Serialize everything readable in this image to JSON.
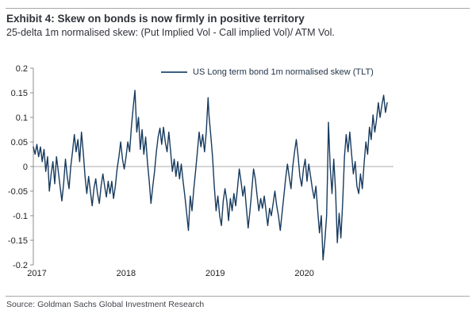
{
  "header": {
    "title": "Exhibit 4: Skew on bonds is now firmly in positive territory",
    "subtitle": "25-delta 1m normalised skew: (Put Implied Vol - Call implied Vol)/ ATM Vol."
  },
  "source": "Source: Goldman Sachs Global Investment Research",
  "chart_data": {
    "type": "line",
    "title": "Exhibit 4: Skew on bonds is now firmly in positive territory",
    "subtitle": "25-delta 1m normalised skew: (Put Implied Vol - Call implied Vol)/ ATM Vol.",
    "xlabel": "",
    "ylabel": "",
    "xlim": [
      2016.96,
      2021.0
    ],
    "ylim": [
      -0.2,
      0.2
    ],
    "grid": "zero-line-only",
    "legend_position": "top-center",
    "axis_color": "#8c8c8c",
    "zero_line_color": "#ababab",
    "tick_label_color": "#222222",
    "y_ticks": [
      {
        "v": 0.2,
        "label": "0.2"
      },
      {
        "v": 0.15,
        "label": "0.15"
      },
      {
        "v": 0.1,
        "label": "0.1"
      },
      {
        "v": 0.05,
        "label": "0.05"
      },
      {
        "v": 0,
        "label": "0"
      },
      {
        "v": -0.05,
        "label": "-0.05"
      },
      {
        "v": -0.1,
        "label": "-0.1"
      },
      {
        "v": -0.15,
        "label": "-0.15"
      },
      {
        "v": -0.2,
        "label": "-0.2"
      }
    ],
    "x_ticks": [
      {
        "v": 2017,
        "label": "2017"
      },
      {
        "v": 2018,
        "label": "2018"
      },
      {
        "v": 2019,
        "label": "2019"
      },
      {
        "v": 2020,
        "label": "2020"
      }
    ],
    "series": [
      {
        "name": "US Long term bond 1m normalised skew (TLT)",
        "color": "#173a5e",
        "points": [
          [
            2016.96,
            0.04
          ],
          [
            2016.98,
            0.025
          ],
          [
            2017.0,
            0.045
          ],
          [
            2017.02,
            0.02
          ],
          [
            2017.04,
            0.04
          ],
          [
            2017.06,
            0.01
          ],
          [
            2017.08,
            0.035
          ],
          [
            2017.1,
            -0.01
          ],
          [
            2017.12,
            0.02
          ],
          [
            2017.14,
            -0.05
          ],
          [
            2017.16,
            -0.015
          ],
          [
            2017.18,
            0.01
          ],
          [
            2017.2,
            -0.035
          ],
          [
            2017.22,
            0.02
          ],
          [
            2017.24,
            -0.01
          ],
          [
            2017.26,
            -0.04
          ],
          [
            2017.28,
            -0.07
          ],
          [
            2017.3,
            -0.035
          ],
          [
            2017.32,
            0.015
          ],
          [
            2017.34,
            -0.02
          ],
          [
            2017.36,
            -0.045
          ],
          [
            2017.38,
            0.0
          ],
          [
            2017.4,
            0.03
          ],
          [
            2017.42,
            0.065
          ],
          [
            2017.44,
            0.03
          ],
          [
            2017.46,
            0.055
          ],
          [
            2017.48,
            0.01
          ],
          [
            2017.5,
            0.07
          ],
          [
            2017.52,
            0.03
          ],
          [
            2017.54,
            -0.02
          ],
          [
            2017.56,
            -0.055
          ],
          [
            2017.58,
            -0.02
          ],
          [
            2017.6,
            -0.05
          ],
          [
            2017.62,
            -0.08
          ],
          [
            2017.64,
            -0.045
          ],
          [
            2017.66,
            -0.025
          ],
          [
            2017.68,
            -0.055
          ],
          [
            2017.7,
            -0.075
          ],
          [
            2017.72,
            -0.04
          ],
          [
            2017.74,
            -0.015
          ],
          [
            2017.76,
            -0.04
          ],
          [
            2017.78,
            -0.062
          ],
          [
            2017.8,
            -0.03
          ],
          [
            2017.82,
            -0.055
          ],
          [
            2017.84,
            -0.03
          ],
          [
            2017.86,
            -0.065
          ],
          [
            2017.88,
            -0.04
          ],
          [
            2017.9,
            -0.005
          ],
          [
            2017.92,
            0.02
          ],
          [
            2017.94,
            0.05
          ],
          [
            2017.96,
            0.015
          ],
          [
            2017.98,
            -0.005
          ],
          [
            2018.0,
            0.02
          ],
          [
            2018.02,
            0.05
          ],
          [
            2018.04,
            0.03
          ],
          [
            2018.06,
            0.08
          ],
          [
            2018.08,
            0.12
          ],
          [
            2018.1,
            0.155
          ],
          [
            2018.12,
            0.07
          ],
          [
            2018.14,
            0.1
          ],
          [
            2018.16,
            0.035
          ],
          [
            2018.18,
            0.075
          ],
          [
            2018.2,
            0.025
          ],
          [
            2018.22,
            0.06
          ],
          [
            2018.24,
            0.01
          ],
          [
            2018.26,
            -0.03
          ],
          [
            2018.28,
            -0.075
          ],
          [
            2018.3,
            -0.04
          ],
          [
            2018.32,
            -0.01
          ],
          [
            2018.34,
            0.03
          ],
          [
            2018.36,
            0.06
          ],
          [
            2018.38,
            0.078
          ],
          [
            2018.4,
            0.045
          ],
          [
            2018.42,
            0.08
          ],
          [
            2018.44,
            0.05
          ],
          [
            2018.46,
            0.03
          ],
          [
            2018.48,
            0.07
          ],
          [
            2018.5,
            0.03
          ],
          [
            2018.52,
            -0.01
          ],
          [
            2018.54,
            0.015
          ],
          [
            2018.56,
            -0.02
          ],
          [
            2018.58,
            0.01
          ],
          [
            2018.6,
            -0.025
          ],
          [
            2018.62,
            0.005
          ],
          [
            2018.64,
            -0.03
          ],
          [
            2018.66,
            -0.06
          ],
          [
            2018.68,
            -0.095
          ],
          [
            2018.7,
            -0.13
          ],
          [
            2018.72,
            -0.06
          ],
          [
            2018.74,
            -0.09
          ],
          [
            2018.76,
            -0.045
          ],
          [
            2018.78,
            -0.01
          ],
          [
            2018.8,
            0.03
          ],
          [
            2018.82,
            0.07
          ],
          [
            2018.84,
            0.04
          ],
          [
            2018.86,
            0.065
          ],
          [
            2018.88,
            0.03
          ],
          [
            2018.9,
            0.07
          ],
          [
            2018.92,
            0.14
          ],
          [
            2018.93,
            0.105
          ],
          [
            2018.95,
            0.065
          ],
          [
            2018.97,
            0.02
          ],
          [
            2018.99,
            -0.04
          ],
          [
            2019.01,
            -0.09
          ],
          [
            2019.03,
            -0.06
          ],
          [
            2019.05,
            -0.1
          ],
          [
            2019.07,
            -0.12
          ],
          [
            2019.09,
            -0.07
          ],
          [
            2019.11,
            -0.045
          ],
          [
            2019.13,
            -0.07
          ],
          [
            2019.15,
            -0.11
          ],
          [
            2019.17,
            -0.065
          ],
          [
            2019.19,
            -0.09
          ],
          [
            2019.21,
            -0.055
          ],
          [
            2019.23,
            -0.08
          ],
          [
            2019.25,
            -0.045
          ],
          [
            2019.27,
            -0.005
          ],
          [
            2019.29,
            -0.03
          ],
          [
            2019.31,
            -0.06
          ],
          [
            2019.33,
            -0.04
          ],
          [
            2019.35,
            -0.085
          ],
          [
            2019.37,
            -0.125
          ],
          [
            2019.39,
            -0.09
          ],
          [
            2019.41,
            -0.05
          ],
          [
            2019.43,
            -0.005
          ],
          [
            2019.45,
            -0.025
          ],
          [
            2019.47,
            -0.06
          ],
          [
            2019.49,
            -0.09
          ],
          [
            2019.51,
            -0.065
          ],
          [
            2019.53,
            -0.085
          ],
          [
            2019.55,
            -0.06
          ],
          [
            2019.57,
            -0.09
          ],
          [
            2019.59,
            -0.12
          ],
          [
            2019.61,
            -0.085
          ],
          [
            2019.63,
            -0.1
          ],
          [
            2019.65,
            -0.075
          ],
          [
            2019.67,
            -0.05
          ],
          [
            2019.69,
            -0.08
          ],
          [
            2019.71,
            -0.1
          ],
          [
            2019.73,
            -0.13
          ],
          [
            2019.75,
            -0.095
          ],
          [
            2019.77,
            -0.06
          ],
          [
            2019.79,
            -0.025
          ],
          [
            2019.81,
            0.005
          ],
          [
            2019.83,
            -0.02
          ],
          [
            2019.85,
            -0.045
          ],
          [
            2019.87,
            0.0
          ],
          [
            2019.89,
            0.03
          ],
          [
            2019.91,
            0.055
          ],
          [
            2019.93,
            0.02
          ],
          [
            2019.95,
            -0.02
          ],
          [
            2019.97,
            -0.04
          ],
          [
            2019.99,
            -0.005
          ],
          [
            2020.01,
            0.015
          ],
          [
            2020.03,
            -0.03
          ],
          [
            2020.05,
            0.005
          ],
          [
            2020.07,
            -0.02
          ],
          [
            2020.09,
            -0.045
          ],
          [
            2020.11,
            -0.065
          ],
          [
            2020.13,
            -0.04
          ],
          [
            2020.15,
            -0.09
          ],
          [
            2020.17,
            -0.135
          ],
          [
            2020.19,
            -0.1
          ],
          [
            2020.21,
            -0.19
          ],
          [
            2020.23,
            -0.15
          ],
          [
            2020.25,
            -0.1
          ],
          [
            2020.26,
            -0.02
          ],
          [
            2020.27,
            0.09
          ],
          [
            2020.29,
            0.0
          ],
          [
            2020.31,
            -0.055
          ],
          [
            2020.33,
            0.015
          ],
          [
            2020.35,
            -0.05
          ],
          [
            2020.37,
            -0.155
          ],
          [
            2020.39,
            -0.095
          ],
          [
            2020.41,
            -0.145
          ],
          [
            2020.43,
            -0.075
          ],
          [
            2020.45,
            0.02
          ],
          [
            2020.47,
            0.065
          ],
          [
            2020.49,
            0.03
          ],
          [
            2020.51,
            0.07
          ],
          [
            2020.53,
            0.025
          ],
          [
            2020.55,
            -0.015
          ],
          [
            2020.57,
            0.01
          ],
          [
            2020.59,
            -0.04
          ],
          [
            2020.61,
            -0.055
          ],
          [
            2020.63,
            -0.015
          ],
          [
            2020.65,
            -0.045
          ],
          [
            2020.67,
            0.005
          ],
          [
            2020.69,
            0.05
          ],
          [
            2020.71,
            0.025
          ],
          [
            2020.73,
            0.08
          ],
          [
            2020.75,
            0.055
          ],
          [
            2020.77,
            0.105
          ],
          [
            2020.79,
            0.07
          ],
          [
            2020.81,
            0.095
          ],
          [
            2020.83,
            0.13
          ],
          [
            2020.85,
            0.1
          ],
          [
            2020.87,
            0.125
          ],
          [
            2020.89,
            0.145
          ],
          [
            2020.91,
            0.11
          ],
          [
            2020.93,
            0.13
          ]
        ]
      }
    ]
  }
}
